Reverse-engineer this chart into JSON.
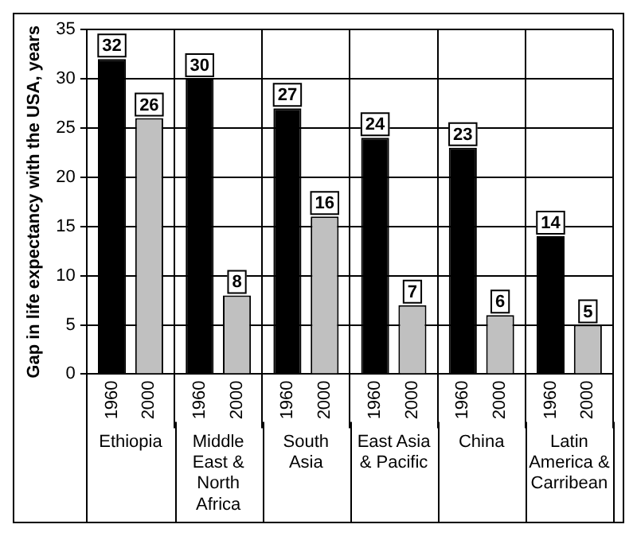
{
  "chart_data": {
    "type": "bar",
    "ylabel": "Gap in life expectancy with the USA, years",
    "categories": [
      "Ethiopia",
      "Middle East & North Africa",
      "South Asia",
      "East Asia & Pacific",
      "China",
      "Latin America & Carribean"
    ],
    "series": [
      {
        "name": "1960",
        "color": "#000000",
        "values": [
          32,
          30,
          27,
          24,
          23,
          14
        ]
      },
      {
        "name": "2000",
        "color": "#c0c0c0",
        "values": [
          26,
          8,
          16,
          7,
          6,
          5
        ]
      }
    ],
    "ylim": [
      0,
      35
    ],
    "yticks": [
      0,
      5,
      10,
      15,
      20,
      25,
      30,
      35
    ],
    "grid": true,
    "legend": false,
    "data_labels": true
  }
}
